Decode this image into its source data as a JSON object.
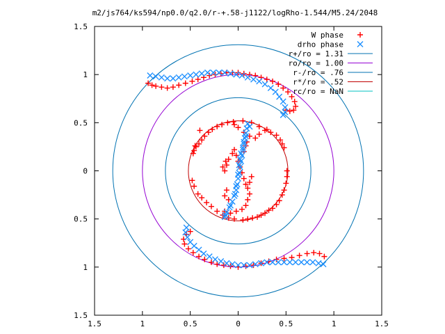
{
  "chart_data": {
    "type": "scatter",
    "title": "m2/js764/ks594/np0.0/q2.0/r-+.58-j1122/logRho-1.544/M5.24/2048",
    "xlim": [
      -1.5,
      1.5
    ],
    "ylim": [
      -1.5,
      1.5
    ],
    "x_ticks": [
      {
        "v": -1.5,
        "label": "1.5"
      },
      {
        "v": -1,
        "label": "1"
      },
      {
        "v": -0.5,
        "label": "0.5"
      },
      {
        "v": 0,
        "label": "0"
      },
      {
        "v": 0.5,
        "label": "0.5"
      },
      {
        "v": 1,
        "label": "1"
      },
      {
        "v": 1.5,
        "label": "1.5"
      }
    ],
    "y_ticks": [
      {
        "v": -1.5,
        "label": "1.5"
      },
      {
        "v": -1,
        "label": "1"
      },
      {
        "v": -0.5,
        "label": "0.5"
      },
      {
        "v": 0,
        "label": "0"
      },
      {
        "v": 0.5,
        "label": "0.5"
      },
      {
        "v": 1,
        "label": "1"
      },
      {
        "v": 1.5,
        "label": "1.5"
      }
    ],
    "grid": false,
    "legend_position": "top-right",
    "circles": [
      {
        "name": "r+/ro = 1.31",
        "radius": 1.31,
        "color": "#0072b2"
      },
      {
        "name": "ro/ro = 1.00",
        "radius": 1.0,
        "color": "#9400d3"
      },
      {
        "name": "r-/ro = .76",
        "radius": 0.76,
        "color": "#0072b2"
      },
      {
        "name": "r*/ro = .52",
        "radius": 0.52,
        "color": "#c00000"
      },
      {
        "name": "rc/ro = NaN",
        "radius": null,
        "color": "#00c0c0"
      }
    ],
    "series": [
      {
        "name": "W phase",
        "marker": "plus",
        "color": "#ff0000",
        "points": [
          [
            -0.94,
            0.91
          ],
          [
            -0.9,
            0.89
          ],
          [
            -0.86,
            0.88
          ],
          [
            -0.8,
            0.87
          ],
          [
            -0.74,
            0.86
          ],
          [
            -0.68,
            0.87
          ],
          [
            -0.62,
            0.89
          ],
          [
            -0.55,
            0.91
          ],
          [
            -0.48,
            0.93
          ],
          [
            -0.42,
            0.95
          ],
          [
            -0.36,
            0.97
          ],
          [
            -0.3,
            0.99
          ],
          [
            -0.24,
            1.0
          ],
          [
            -0.18,
            1.01
          ],
          [
            -0.12,
            1.02
          ],
          [
            -0.06,
            1.02
          ],
          [
            0.0,
            1.02
          ],
          [
            0.06,
            1.01
          ],
          [
            0.12,
            1.0
          ],
          [
            0.18,
            0.99
          ],
          [
            0.24,
            0.97
          ],
          [
            0.3,
            0.95
          ],
          [
            0.36,
            0.93
          ],
          [
            0.42,
            0.9
          ],
          [
            0.47,
            0.86
          ],
          [
            0.52,
            0.82
          ],
          [
            0.56,
            0.77
          ],
          [
            0.59,
            0.72
          ],
          [
            0.6,
            0.67
          ],
          [
            0.58,
            0.63
          ],
          [
            0.54,
            0.62
          ],
          [
            0.5,
            0.63
          ],
          [
            -0.5,
            -0.63
          ],
          [
            -0.54,
            -0.66
          ],
          [
            -0.57,
            -0.71
          ],
          [
            -0.56,
            -0.76
          ],
          [
            -0.52,
            -0.81
          ],
          [
            -0.47,
            -0.85
          ],
          [
            -0.41,
            -0.89
          ],
          [
            -0.35,
            -0.92
          ],
          [
            -0.28,
            -0.95
          ],
          [
            -0.22,
            -0.97
          ],
          [
            -0.15,
            -0.98
          ],
          [
            -0.08,
            -0.99
          ],
          [
            0.0,
            -1.0
          ],
          [
            0.08,
            -0.99
          ],
          [
            0.16,
            -0.98
          ],
          [
            0.24,
            -0.96
          ],
          [
            0.32,
            -0.94
          ],
          [
            0.4,
            -0.92
          ],
          [
            0.48,
            -0.91
          ],
          [
            0.56,
            -0.9
          ],
          [
            0.64,
            -0.88
          ],
          [
            0.72,
            -0.86
          ],
          [
            0.79,
            -0.85
          ],
          [
            0.85,
            -0.86
          ],
          [
            0.9,
            -0.89
          ],
          [
            0.05,
            -0.51
          ],
          [
            0.1,
            -0.5
          ],
          [
            0.15,
            -0.49
          ],
          [
            0.2,
            -0.48
          ],
          [
            0.24,
            -0.46
          ],
          [
            0.28,
            -0.44
          ],
          [
            0.32,
            -0.41
          ],
          [
            0.36,
            -0.39
          ],
          [
            0.4,
            -0.35
          ],
          [
            0.43,
            -0.31
          ],
          [
            0.46,
            -0.25
          ],
          [
            0.48,
            -0.2
          ],
          [
            0.5,
            -0.13
          ],
          [
            0.51,
            -0.06
          ],
          [
            0.51,
            0.0
          ],
          [
            -0.05,
            0.51
          ],
          [
            -0.11,
            0.5
          ],
          [
            -0.17,
            0.48
          ],
          [
            -0.22,
            0.46
          ],
          [
            -0.27,
            0.43
          ],
          [
            -0.31,
            0.4
          ],
          [
            -0.35,
            0.36
          ],
          [
            -0.38,
            0.32
          ],
          [
            -0.41,
            0.28
          ],
          [
            -0.44,
            0.25
          ],
          [
            -0.46,
            0.21
          ],
          [
            -0.47,
            0.18
          ],
          [
            -0.4,
            0.42
          ],
          [
            -0.45,
            0.26
          ],
          [
            -0.48,
            -0.1
          ],
          [
            -0.46,
            -0.16
          ],
          [
            -0.42,
            -0.24
          ],
          [
            -0.38,
            -0.28
          ],
          [
            -0.33,
            -0.33
          ],
          [
            -0.28,
            -0.37
          ],
          [
            -0.22,
            -0.42
          ],
          [
            -0.16,
            -0.46
          ],
          [
            -0.1,
            -0.49
          ],
          [
            -0.04,
            -0.5
          ],
          [
            0.4,
            0.37
          ],
          [
            0.44,
            0.32
          ],
          [
            0.48,
            0.24
          ],
          [
            0.46,
            0.28
          ],
          [
            0.34,
            0.4
          ],
          [
            0.28,
            0.42
          ],
          [
            0.22,
            0.38
          ],
          [
            0.18,
            0.34
          ],
          [
            0.12,
            0.36
          ],
          [
            0.06,
            0.4
          ],
          [
            0.0,
            0.45
          ],
          [
            -0.04,
            0.48
          ],
          [
            0.05,
            0.52
          ],
          [
            0.14,
            0.5
          ],
          [
            0.22,
            0.46
          ],
          [
            0.3,
            0.43
          ],
          [
            -0.14,
            0.0
          ],
          [
            -0.12,
            0.06
          ],
          [
            -0.1,
            0.12
          ],
          [
            -0.06,
            0.18
          ],
          [
            -0.04,
            0.22
          ],
          [
            -0.02,
            0.16
          ],
          [
            0.0,
            0.1
          ],
          [
            0.02,
            0.04
          ],
          [
            0.04,
            -0.02
          ],
          [
            0.06,
            -0.08
          ],
          [
            0.08,
            -0.14
          ],
          [
            0.1,
            -0.18
          ],
          [
            0.12,
            -0.12
          ],
          [
            0.14,
            -0.06
          ],
          [
            -0.16,
            0.04
          ],
          [
            -0.13,
            0.1
          ],
          [
            0.06,
            0.2
          ],
          [
            0.08,
            0.26
          ],
          [
            0.09,
            0.3
          ],
          [
            -0.12,
            -0.2
          ],
          [
            -0.14,
            -0.26
          ],
          [
            -0.1,
            -0.3
          ],
          [
            0.12,
            -0.24
          ],
          [
            0.1,
            -0.3
          ],
          [
            0.08,
            -0.36
          ],
          [
            0.04,
            -0.4
          ],
          [
            -0.02,
            -0.42
          ],
          [
            -0.08,
            -0.44
          ],
          [
            -0.14,
            -0.42
          ]
        ]
      },
      {
        "name": "drho phase",
        "marker": "cross",
        "color": "#1e90ff",
        "points": [
          [
            -0.92,
            0.99
          ],
          [
            -0.86,
            0.98
          ],
          [
            -0.8,
            0.97
          ],
          [
            -0.74,
            0.96
          ],
          [
            -0.68,
            0.96
          ],
          [
            -0.62,
            0.97
          ],
          [
            -0.56,
            0.98
          ],
          [
            -0.5,
            0.99
          ],
          [
            -0.44,
            1.0
          ],
          [
            -0.38,
            1.01
          ],
          [
            -0.32,
            1.02
          ],
          [
            -0.26,
            1.02
          ],
          [
            -0.2,
            1.02
          ],
          [
            -0.14,
            1.02
          ],
          [
            -0.08,
            1.01
          ],
          [
            -0.02,
            1.0
          ],
          [
            0.04,
            0.99
          ],
          [
            0.1,
            0.97
          ],
          [
            0.16,
            0.95
          ],
          [
            0.22,
            0.93
          ],
          [
            0.28,
            0.9
          ],
          [
            0.34,
            0.86
          ],
          [
            0.39,
            0.82
          ],
          [
            0.43,
            0.77
          ],
          [
            0.47,
            0.72
          ],
          [
            0.49,
            0.66
          ],
          [
            0.49,
            0.61
          ],
          [
            0.47,
            0.58
          ],
          [
            -0.54,
            -0.59
          ],
          [
            -0.55,
            -0.64
          ],
          [
            -0.53,
            -0.69
          ],
          [
            -0.5,
            -0.74
          ],
          [
            -0.46,
            -0.78
          ],
          [
            -0.41,
            -0.82
          ],
          [
            -0.36,
            -0.86
          ],
          [
            -0.3,
            -0.89
          ],
          [
            -0.24,
            -0.92
          ],
          [
            -0.18,
            -0.94
          ],
          [
            -0.12,
            -0.96
          ],
          [
            -0.06,
            -0.97
          ],
          [
            0.0,
            -0.98
          ],
          [
            0.06,
            -0.98
          ],
          [
            0.12,
            -0.98
          ],
          [
            0.18,
            -0.97
          ],
          [
            0.24,
            -0.96
          ],
          [
            0.3,
            -0.95
          ],
          [
            0.36,
            -0.95
          ],
          [
            0.42,
            -0.95
          ],
          [
            0.48,
            -0.95
          ],
          [
            0.54,
            -0.95
          ],
          [
            0.6,
            -0.95
          ],
          [
            0.66,
            -0.95
          ],
          [
            0.72,
            -0.95
          ],
          [
            0.78,
            -0.95
          ],
          [
            0.84,
            -0.96
          ],
          [
            0.89,
            -0.97
          ],
          [
            0.1,
            0.49
          ],
          [
            0.09,
            0.44
          ],
          [
            0.08,
            0.39
          ],
          [
            0.07,
            0.34
          ],
          [
            0.06,
            0.28
          ],
          [
            0.05,
            0.22
          ],
          [
            0.04,
            0.16
          ],
          [
            0.03,
            0.1
          ],
          [
            0.02,
            0.04
          ],
          [
            0.01,
            -0.02
          ],
          [
            0.0,
            -0.08
          ],
          [
            -0.01,
            -0.14
          ],
          [
            -0.02,
            -0.2
          ],
          [
            -0.04,
            -0.26
          ],
          [
            -0.06,
            -0.32
          ],
          [
            -0.09,
            -0.38
          ],
          [
            -0.12,
            -0.43
          ],
          [
            -0.14,
            -0.48
          ],
          [
            0.12,
            0.46
          ],
          [
            0.08,
            0.36
          ],
          [
            0.06,
            0.3
          ],
          [
            0.05,
            0.24
          ],
          [
            0.02,
            0.12
          ],
          [
            0.0,
            -0.04
          ],
          [
            -0.03,
            -0.24
          ],
          [
            -0.08,
            -0.36
          ],
          [
            -0.13,
            -0.46
          ],
          [
            0.03,
            0.18
          ],
          [
            0.01,
            0.06
          ],
          [
            -0.02,
            -0.16
          ]
        ]
      }
    ]
  }
}
